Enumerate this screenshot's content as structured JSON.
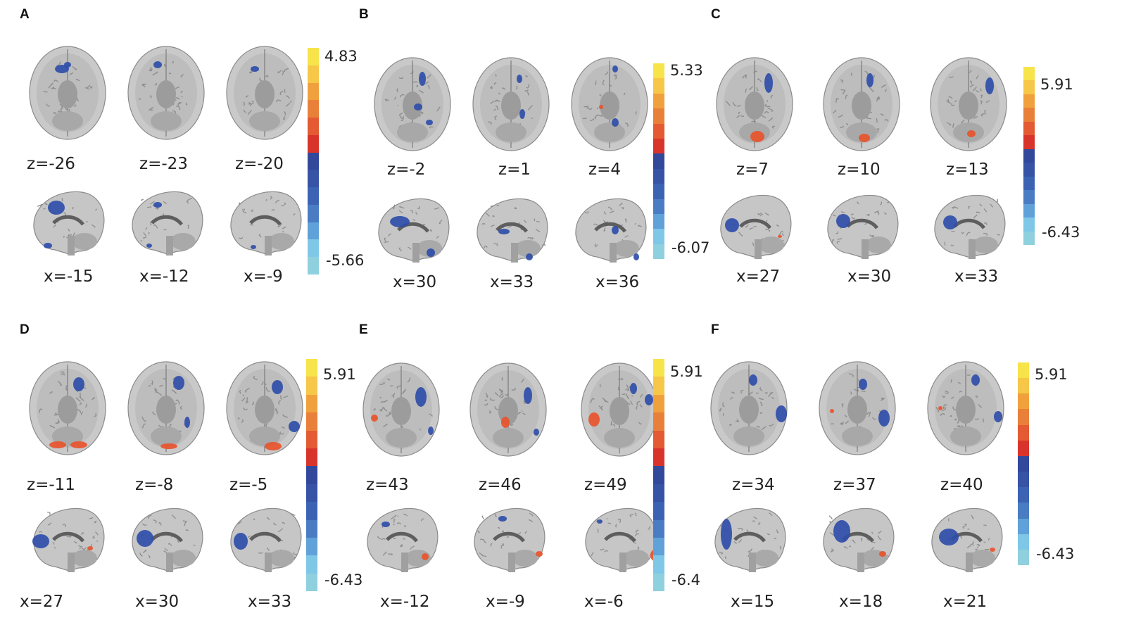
{
  "colors": {
    "scale": [
      "#f7e34a",
      "#f6c748",
      "#f0a13d",
      "#e9803a",
      "#e35a33",
      "#d9342c",
      "#32489a",
      "#3653a6",
      "#3c63b3",
      "#4a7cc3",
      "#5fa1d8",
      "#7ec7e6",
      "#8fd0de"
    ],
    "positive": "#e8542c",
    "negative": "#2f4ea9"
  },
  "panels": [
    {
      "label": "A",
      "axial": [
        "z=-26",
        "z=-23",
        "z=-20"
      ],
      "sagittal": [
        "x=-15",
        "x=-12",
        "x=-9"
      ],
      "max": "4.83",
      "min": "-5.66"
    },
    {
      "label": "B",
      "axial": [
        "z=-2",
        "z=1",
        "z=4"
      ],
      "sagittal": [
        "x=30",
        "x=33",
        "x=36"
      ],
      "max": "5.33",
      "min": "-6.07"
    },
    {
      "label": "C",
      "axial": [
        "z=7",
        "z=10",
        "z=13"
      ],
      "sagittal": [
        "x=27",
        "x=30",
        "x=33"
      ],
      "max": "5.91",
      "min": "-6.43"
    },
    {
      "label": "D",
      "axial": [
        "z=-11",
        "z=-8",
        "z=-5"
      ],
      "sagittal": [
        "x=27",
        "x=30",
        "x=33"
      ],
      "max": "5.91",
      "min": "-6.43"
    },
    {
      "label": "E",
      "axial": [
        "z=43",
        "z=46",
        "z=49"
      ],
      "sagittal": [
        "x=-12",
        "x=-9",
        "x=-6"
      ],
      "max": "5.91",
      "min": "-6.4"
    },
    {
      "label": "F",
      "axial": [
        "z=34",
        "z=37",
        "z=40"
      ],
      "sagittal": [
        "x=15",
        "x=18",
        "x=21"
      ],
      "max": "5.91",
      "min": "-6.43"
    }
  ]
}
